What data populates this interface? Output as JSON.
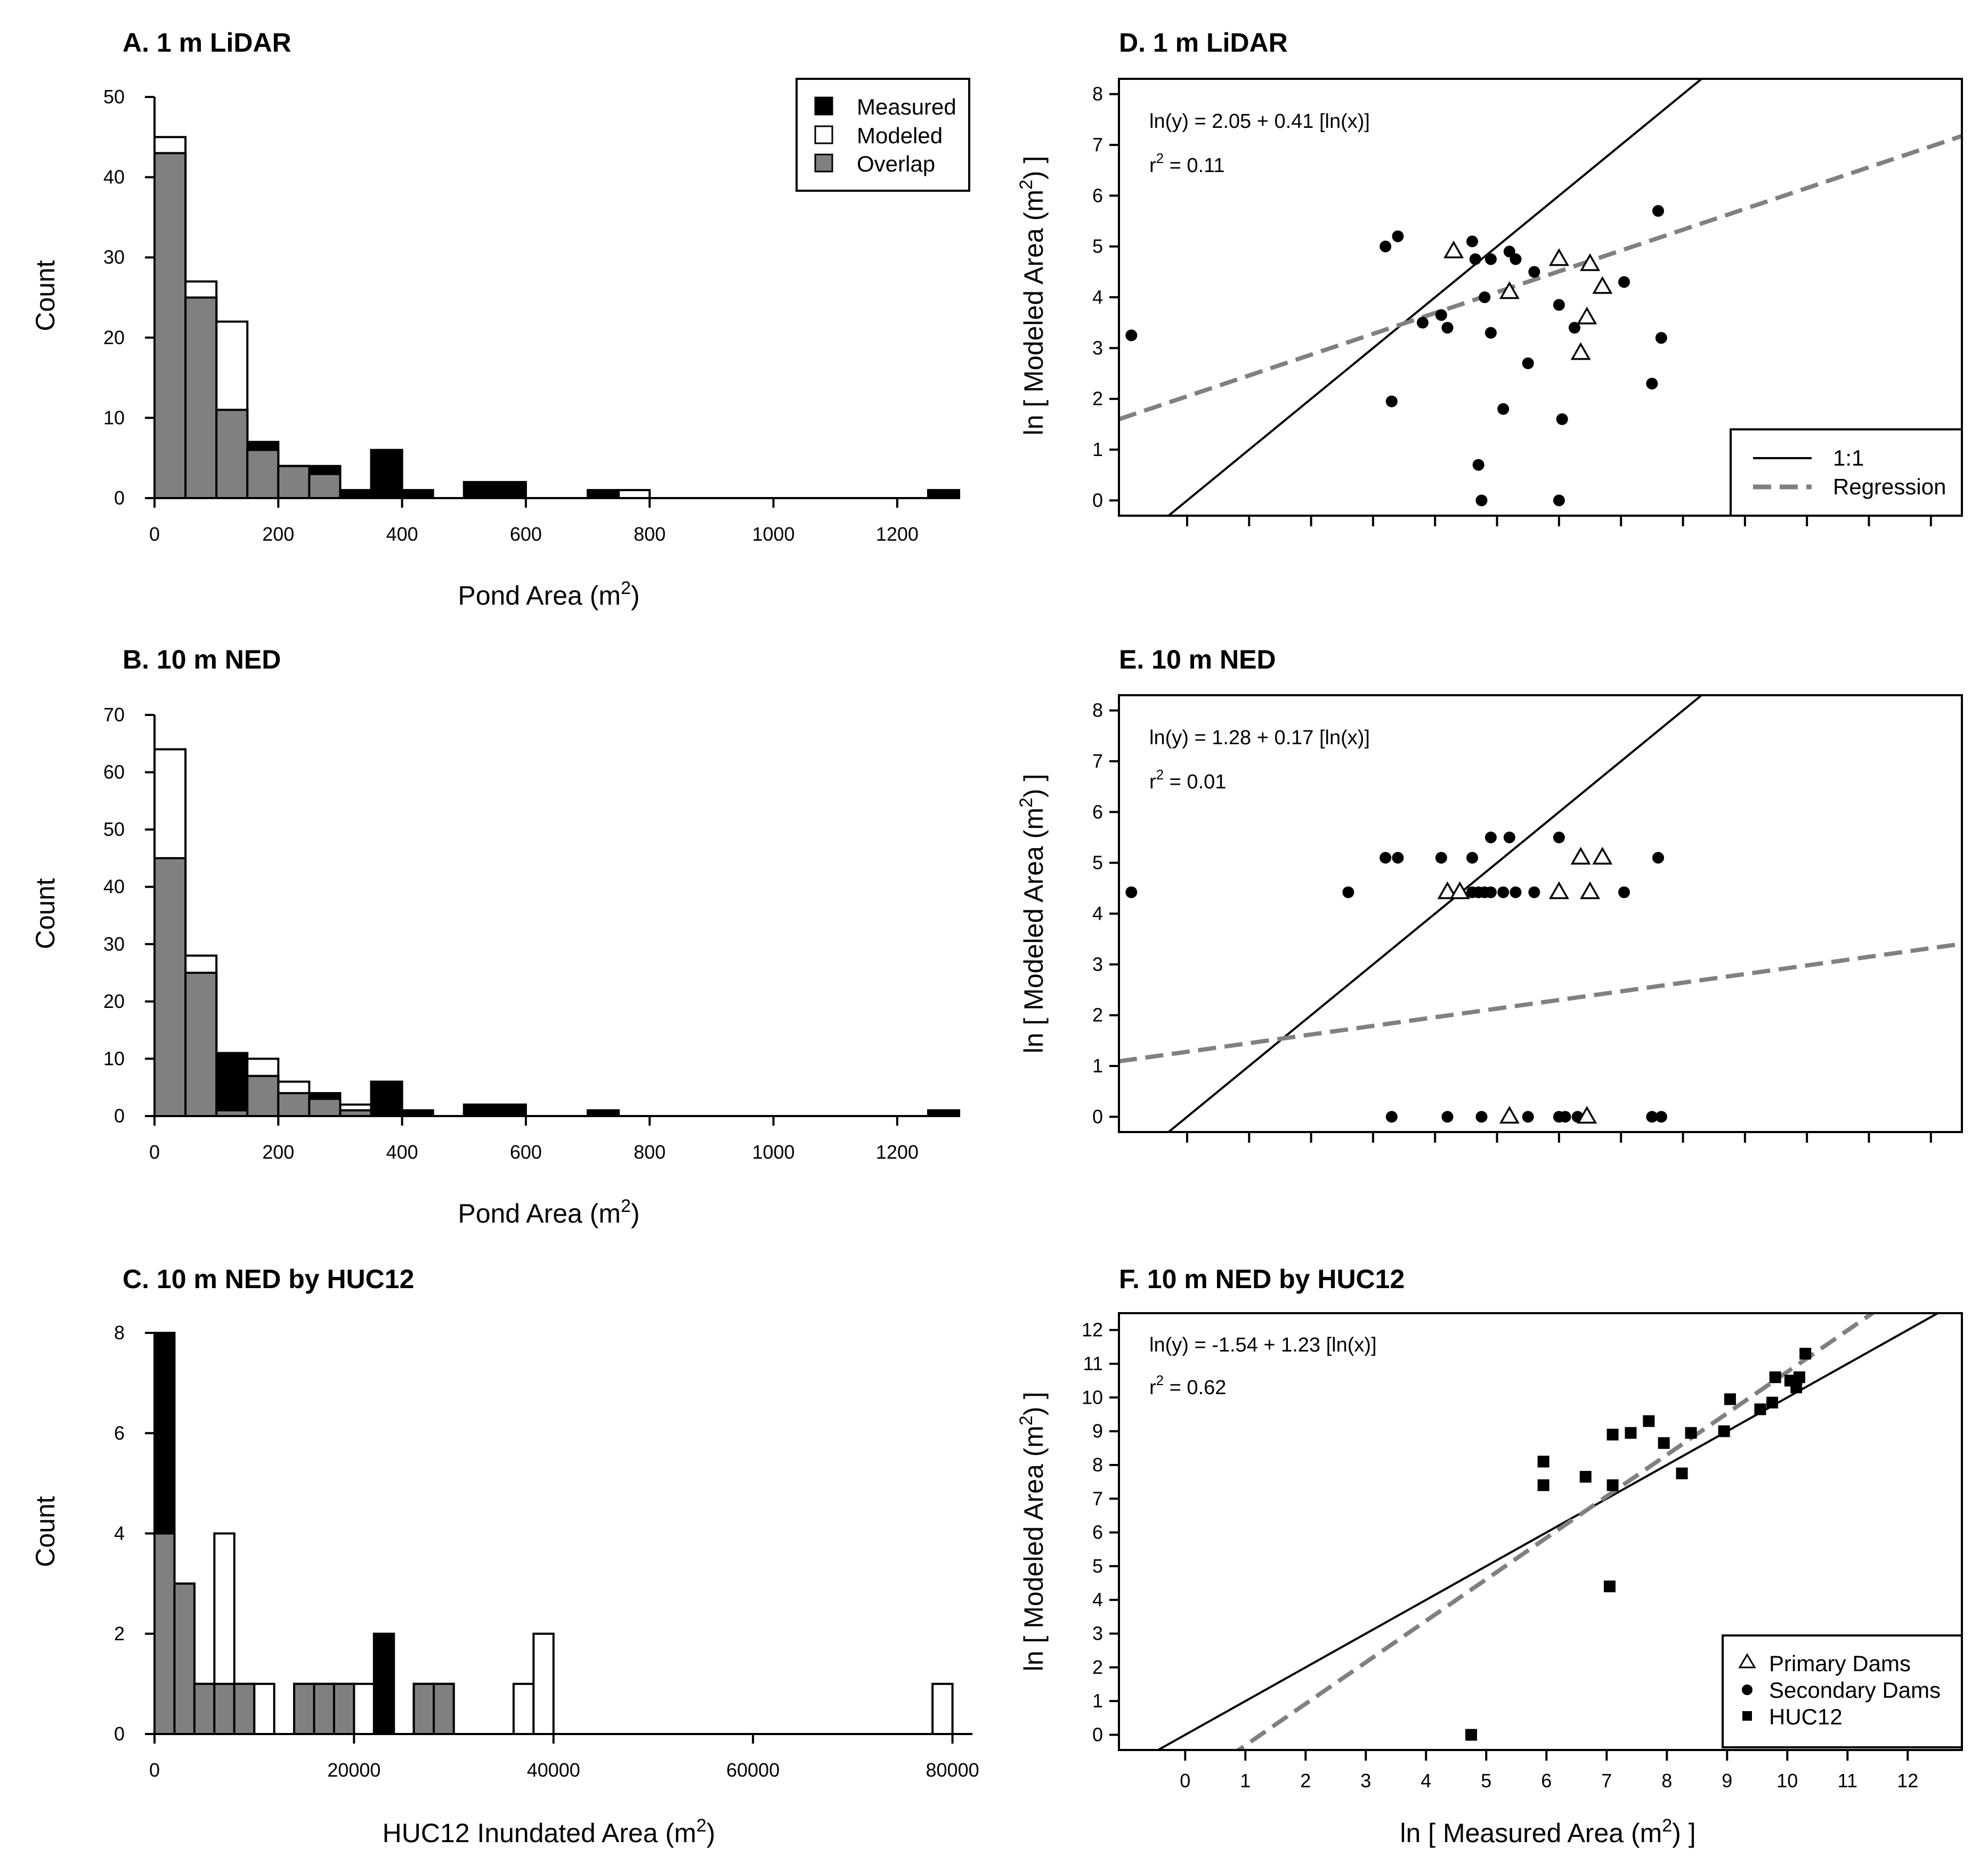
{
  "colors": {
    "measured": "#000000",
    "modeled": "#ffffff",
    "overlap": "#808080",
    "regression": "#808080",
    "line11": "#000000"
  },
  "chart_data": [
    {
      "id": "A",
      "type": "bar",
      "title": "A. 1 m LiDAR",
      "xlabel": "Pond Area (m",
      "xlabel_sup": "2",
      "xlabel_end": ")",
      "ylabel": "Count",
      "xlim": [
        0,
        1300
      ],
      "ylim": [
        0,
        50
      ],
      "xticks": [
        0,
        200,
        400,
        600,
        800,
        1000,
        1200
      ],
      "yticks": [
        0,
        10,
        20,
        30,
        40,
        50
      ],
      "bin_width": 50,
      "series": [
        {
          "name": "Measured",
          "bins": [
            [
              0,
              43
            ],
            [
              50,
              25
            ],
            [
              100,
              11
            ],
            [
              150,
              7
            ],
            [
              200,
              4
            ],
            [
              250,
              4
            ],
            [
              300,
              1
            ],
            [
              350,
              6
            ],
            [
              400,
              1
            ],
            [
              500,
              2
            ],
            [
              550,
              2
            ],
            [
              700,
              1
            ],
            [
              1250,
              1
            ]
          ]
        },
        {
          "name": "Modeled",
          "bins": [
            [
              0,
              45
            ],
            [
              50,
              27
            ],
            [
              100,
              22
            ],
            [
              150,
              6
            ],
            [
              200,
              4
            ],
            [
              250,
              3
            ],
            [
              750,
              1
            ]
          ]
        },
        {
          "name": "Overlap",
          "bins": [
            [
              0,
              43
            ],
            [
              50,
              25
            ],
            [
              100,
              11
            ],
            [
              150,
              6
            ],
            [
              200,
              4
            ],
            [
              250,
              3
            ]
          ]
        }
      ],
      "legend": {
        "position": "top-right",
        "entries": [
          "Measured",
          "Modeled",
          "Overlap"
        ]
      }
    },
    {
      "id": "B",
      "type": "bar",
      "title": "B. 10 m NED",
      "xlabel": "Pond Area (m",
      "xlabel_sup": "2",
      "xlabel_end": ")",
      "ylabel": "Count",
      "xlim": [
        0,
        1300
      ],
      "ylim": [
        0,
        70
      ],
      "xticks": [
        0,
        200,
        400,
        600,
        800,
        1000,
        1200
      ],
      "yticks": [
        0,
        10,
        20,
        30,
        40,
        50,
        60,
        70
      ],
      "bin_width": 50,
      "series": [
        {
          "name": "Measured",
          "bins": [
            [
              0,
              45
            ],
            [
              50,
              25
            ],
            [
              100,
              11
            ],
            [
              150,
              7
            ],
            [
              200,
              4
            ],
            [
              250,
              4
            ],
            [
              300,
              1
            ],
            [
              350,
              6
            ],
            [
              400,
              1
            ],
            [
              500,
              2
            ],
            [
              550,
              2
            ],
            [
              700,
              1
            ],
            [
              1250,
              1
            ]
          ]
        },
        {
          "name": "Modeled",
          "bins": [
            [
              0,
              64
            ],
            [
              50,
              28
            ],
            [
              100,
              1
            ],
            [
              150,
              10
            ],
            [
              200,
              6
            ],
            [
              250,
              3
            ],
            [
              300,
              2
            ]
          ]
        },
        {
          "name": "Overlap",
          "bins": [
            [
              0,
              45
            ],
            [
              50,
              25
            ],
            [
              100,
              1
            ],
            [
              150,
              7
            ],
            [
              200,
              4
            ],
            [
              250,
              3
            ],
            [
              300,
              1
            ]
          ]
        }
      ]
    },
    {
      "id": "C",
      "type": "bar",
      "title": "C. 10 m NED by HUC12",
      "xlabel": "HUC12 Inundated Area (m",
      "xlabel_sup": "2",
      "xlabel_end": ")",
      "ylabel": "Count",
      "xlim": [
        0,
        82000
      ],
      "ylim": [
        0,
        8
      ],
      "xticks": [
        0,
        20000,
        40000,
        60000,
        80000
      ],
      "yticks": [
        0,
        2,
        4,
        6,
        8
      ],
      "bin_width": 2000,
      "series": [
        {
          "name": "Measured",
          "bins": [
            [
              0,
              8
            ],
            [
              2000,
              3
            ],
            [
              4000,
              1
            ],
            [
              6000,
              1
            ],
            [
              8000,
              1
            ],
            [
              14000,
              1
            ],
            [
              16000,
              1
            ],
            [
              18000,
              1
            ],
            [
              22000,
              2
            ],
            [
              26000,
              1
            ],
            [
              28000,
              1
            ]
          ]
        },
        {
          "name": "Modeled",
          "bins": [
            [
              0,
              4
            ],
            [
              2000,
              3
            ],
            [
              4000,
              1
            ],
            [
              6000,
              4
            ],
            [
              8000,
              1
            ],
            [
              10000,
              1
            ],
            [
              14000,
              1
            ],
            [
              16000,
              1
            ],
            [
              18000,
              1
            ],
            [
              20000,
              1
            ],
            [
              26000,
              1
            ],
            [
              28000,
              1
            ],
            [
              36000,
              1
            ],
            [
              38000,
              2
            ],
            [
              78000,
              1
            ]
          ]
        },
        {
          "name": "Overlap",
          "bins": [
            [
              0,
              4
            ],
            [
              2000,
              3
            ],
            [
              4000,
              1
            ],
            [
              6000,
              1
            ],
            [
              8000,
              1
            ],
            [
              14000,
              1
            ],
            [
              16000,
              1
            ],
            [
              18000,
              1
            ],
            [
              26000,
              1
            ],
            [
              28000,
              1
            ]
          ]
        }
      ]
    },
    {
      "id": "D",
      "type": "scatter",
      "title": "D. 1 m LiDAR",
      "ylabel": "ln [ Modeled Area (m",
      "ylabel_sup": "2",
      "ylabel_end": ") ]",
      "xlim": [
        -1.1,
        12.5
      ],
      "ylim": [
        -0.3,
        8.3
      ],
      "xticks": [
        0,
        1,
        2,
        3,
        4,
        5,
        6,
        7,
        8,
        9,
        10,
        11,
        12
      ],
      "xtick_labels_shown": false,
      "yticks": [
        0,
        1,
        2,
        3,
        4,
        5,
        6,
        7,
        8
      ],
      "equation": "ln(y) = 2.05 + 0.41 [ln(x)]",
      "r2_prefix": "r",
      "r2_sup": "2",
      "r2_value": " = 0.11",
      "regression": {
        "intercept": 2.05,
        "slope": 0.41
      },
      "primary_dams": [
        [
          4.3,
          4.9
        ],
        [
          5.2,
          4.1
        ],
        [
          6.0,
          4.75
        ],
        [
          6.5,
          4.65
        ],
        [
          6.7,
          4.2
        ],
        [
          6.45,
          3.6
        ],
        [
          6.35,
          2.9
        ]
      ],
      "secondary_dams": [
        [
          -0.9,
          3.25
        ],
        [
          3.2,
          5.0
        ],
        [
          3.4,
          5.2
        ],
        [
          3.3,
          1.95
        ],
        [
          3.8,
          3.5
        ],
        [
          4.1,
          3.65
        ],
        [
          4.2,
          3.4
        ],
        [
          4.6,
          5.1
        ],
        [
          4.65,
          4.75
        ],
        [
          4.8,
          4.0
        ],
        [
          4.9,
          4.75
        ],
        [
          4.9,
          3.3
        ],
        [
          5.2,
          4.9
        ],
        [
          5.3,
          4.75
        ],
        [
          5.6,
          4.5
        ],
        [
          5.5,
          2.7
        ],
        [
          5.1,
          1.8
        ],
        [
          4.7,
          0.7
        ],
        [
          4.75,
          0.0
        ],
        [
          6.0,
          3.85
        ],
        [
          6.05,
          1.6
        ],
        [
          6.25,
          3.4
        ],
        [
          7.05,
          4.3
        ],
        [
          7.6,
          5.7
        ],
        [
          7.5,
          2.3
        ],
        [
          7.65,
          3.2
        ],
        [
          6.0,
          0.0
        ]
      ],
      "legend": {
        "position": "bottom-right",
        "entries": [
          "1:1",
          "Regression"
        ]
      }
    },
    {
      "id": "E",
      "type": "scatter",
      "title": "E. 10 m NED",
      "ylabel": "ln [ Modeled Area (m",
      "ylabel_sup": "2",
      "ylabel_end": ") ]",
      "xlim": [
        -1.1,
        12.5
      ],
      "ylim": [
        -0.3,
        8.3
      ],
      "xticks": [
        0,
        1,
        2,
        3,
        4,
        5,
        6,
        7,
        8,
        9,
        10,
        11,
        12
      ],
      "xtick_labels_shown": false,
      "yticks": [
        0,
        1,
        2,
        3,
        4,
        5,
        6,
        7,
        8
      ],
      "equation": "ln(y) = 1.28 + 0.17 [ln(x)]",
      "r2_prefix": "r",
      "r2_sup": "2",
      "r2_value": " = 0.01",
      "regression": {
        "intercept": 1.28,
        "slope": 0.17
      },
      "primary_dams": [
        [
          4.2,
          4.42
        ],
        [
          4.4,
          4.42
        ],
        [
          6.0,
          4.42
        ],
        [
          6.5,
          4.42
        ],
        [
          6.35,
          5.1
        ],
        [
          6.7,
          5.1
        ],
        [
          5.2,
          0.0
        ],
        [
          6.45,
          0.0
        ]
      ],
      "secondary_dams": [
        [
          -0.9,
          4.42
        ],
        [
          2.6,
          4.42
        ],
        [
          3.2,
          5.1
        ],
        [
          3.4,
          5.1
        ],
        [
          4.1,
          5.1
        ],
        [
          4.6,
          5.1
        ],
        [
          4.9,
          5.5
        ],
        [
          5.2,
          5.5
        ],
        [
          6.0,
          5.5
        ],
        [
          7.6,
          5.1
        ],
        [
          4.6,
          4.42
        ],
        [
          4.7,
          4.42
        ],
        [
          4.8,
          4.42
        ],
        [
          4.9,
          4.42
        ],
        [
          5.1,
          4.42
        ],
        [
          5.3,
          4.42
        ],
        [
          5.6,
          4.42
        ],
        [
          7.05,
          4.42
        ],
        [
          3.3,
          0.0
        ],
        [
          4.2,
          0.0
        ],
        [
          4.75,
          0.0
        ],
        [
          5.5,
          0.0
        ],
        [
          6.0,
          0.0
        ],
        [
          6.1,
          0.0
        ],
        [
          6.3,
          0.0
        ],
        [
          7.5,
          0.0
        ],
        [
          7.65,
          0.0
        ]
      ]
    },
    {
      "id": "F",
      "type": "scatter",
      "title": "F. 10 m NED by HUC12",
      "xlabel": "ln [ Measured Area (m",
      "xlabel_sup": "2",
      "xlabel_end": ") ]",
      "ylabel": "ln [ Modeled Area (m",
      "ylabel_sup": "2",
      "ylabel_end": ") ]",
      "xlim": [
        -1.1,
        12.9
      ],
      "ylim": [
        -0.45,
        12.5
      ],
      "xticks": [
        0,
        1,
        2,
        3,
        4,
        5,
        6,
        7,
        8,
        9,
        10,
        11,
        12
      ],
      "xtick_labels_shown": true,
      "yticks": [
        0,
        1,
        2,
        3,
        4,
        5,
        6,
        7,
        8,
        9,
        10,
        11,
        12
      ],
      "equation": "ln(y) = -1.54 + 1.23 [ln(x)]",
      "r2_prefix": "r",
      "r2_sup": "2",
      "r2_value": " = 0.62",
      "regression": {
        "intercept": -1.54,
        "slope": 1.23
      },
      "huc12": [
        [
          4.75,
          0.0
        ],
        [
          5.95,
          8.1
        ],
        [
          5.95,
          7.4
        ],
        [
          6.65,
          7.65
        ],
        [
          7.05,
          4.4
        ],
        [
          7.1,
          8.9
        ],
        [
          7.1,
          7.4
        ],
        [
          7.4,
          8.95
        ],
        [
          7.7,
          9.3
        ],
        [
          7.95,
          8.65
        ],
        [
          8.25,
          7.75
        ],
        [
          8.4,
          8.95
        ],
        [
          8.95,
          9.0
        ],
        [
          9.05,
          9.95
        ],
        [
          9.55,
          9.65
        ],
        [
          9.75,
          9.85
        ],
        [
          9.8,
          10.6
        ],
        [
          10.05,
          10.5
        ],
        [
          10.15,
          10.3
        ],
        [
          10.2,
          10.6
        ],
        [
          10.3,
          11.3
        ]
      ],
      "legend": {
        "position": "bottom-right",
        "entries": [
          "Primary Dams",
          "Secondary Dams",
          "HUC12"
        ]
      }
    }
  ]
}
